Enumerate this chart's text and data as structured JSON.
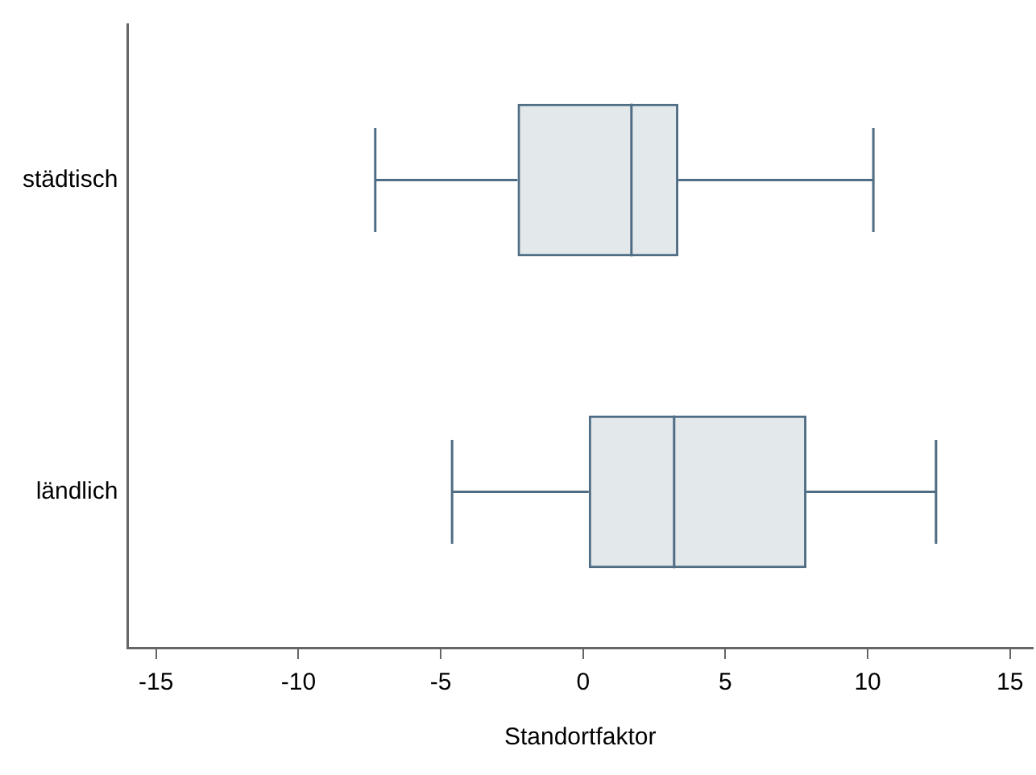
{
  "chart_data": {
    "type": "box",
    "orientation": "horizontal",
    "xlabel": "Standortfaktor",
    "categories": [
      "städtisch",
      "ländlich"
    ],
    "boxes": [
      {
        "low": -7.3,
        "q1": -2.3,
        "median": 1.7,
        "q3": 3.35,
        "high": 10.2
      },
      {
        "low": -4.6,
        "q1": 0.2,
        "median": 3.2,
        "q3": 7.85,
        "high": 12.4
      }
    ],
    "color": "#4f6d84",
    "xlim": [
      -16,
      15.8
    ],
    "xticks": [
      -15,
      -10,
      -5,
      0,
      5,
      10,
      15
    ]
  }
}
